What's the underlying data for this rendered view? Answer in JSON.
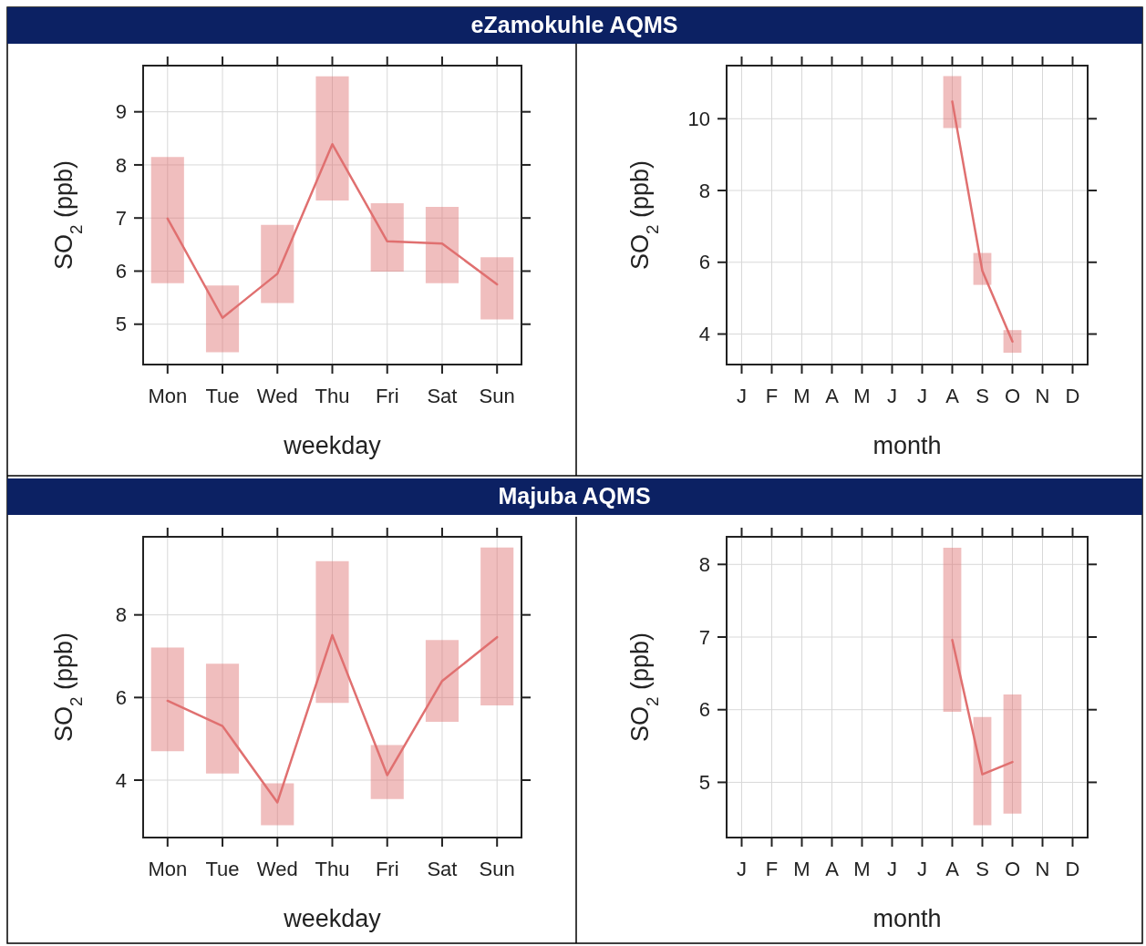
{
  "chart_data": [
    {
      "type": "line",
      "title": "eZamokuhle AQMS",
      "categories": [
        "Mon",
        "Tue",
        "Wed",
        "Thu",
        "Fri",
        "Sat",
        "Sun"
      ],
      "xlabel": "weekday",
      "ylabel": "SO$_{2}$ (ppb)",
      "ylim": [
        4.24,
        9.87
      ],
      "yticks": [
        5,
        6,
        7,
        8,
        9
      ],
      "grid": true,
      "series": [
        {
          "color": "#e07070",
          "values": [
            6.99,
            5.12,
            5.95,
            8.39,
            6.56,
            6.52,
            5.75
          ],
          "errors": [
            [
              5.77,
              8.15
            ],
            [
              4.47,
              5.73
            ],
            [
              5.4,
              6.87
            ],
            [
              7.33,
              9.67
            ],
            [
              5.99,
              7.28
            ],
            [
              5.77,
              7.21
            ],
            [
              5.09,
              6.26
            ]
          ]
        }
      ]
    },
    {
      "type": "line",
      "categories": [
        "J",
        "F",
        "M",
        "A",
        "M",
        "J",
        "J",
        "A",
        "S",
        "O",
        "N",
        "D"
      ],
      "xlabel": "month",
      "ylabel": "SO$_{2}$ (ppb)",
      "ylim": [
        3.15,
        11.48
      ],
      "yticks": [
        4,
        6,
        8,
        10
      ],
      "grid": true,
      "series": [
        {
          "color": "#e07070",
          "values": [
            null,
            null,
            null,
            null,
            null,
            null,
            null,
            10.48,
            5.76,
            3.79,
            null,
            null
          ],
          "errors": [
            null,
            null,
            null,
            null,
            null,
            null,
            null,
            [
              9.74,
              11.19
            ],
            [
              5.37,
              6.26
            ],
            [
              3.48,
              4.11
            ],
            null,
            null
          ]
        }
      ]
    },
    {
      "type": "line",
      "title": "Majuba AQMS",
      "categories": [
        "Mon",
        "Tue",
        "Wed",
        "Thu",
        "Fri",
        "Sat",
        "Sun"
      ],
      "xlabel": "weekday",
      "ylabel": "SO$_{2}$ (ppb)",
      "ylim": [
        2.61,
        9.89
      ],
      "yticks": [
        4,
        6,
        8
      ],
      "grid": true,
      "series": [
        {
          "color": "#e07070",
          "values": [
            5.92,
            5.31,
            3.46,
            7.51,
            4.12,
            6.4,
            7.46
          ],
          "errors": [
            [
              4.7,
              7.21
            ],
            [
              4.16,
              6.82
            ],
            [
              2.91,
              3.92
            ],
            [
              5.87,
              9.3
            ],
            [
              3.54,
              4.85
            ],
            [
              5.41,
              7.39
            ],
            [
              5.81,
              9.63
            ]
          ]
        }
      ]
    },
    {
      "type": "line",
      "categories": [
        "J",
        "F",
        "M",
        "A",
        "M",
        "J",
        "J",
        "A",
        "S",
        "O",
        "N",
        "D"
      ],
      "xlabel": "month",
      "ylabel": "SO$_{2}$ (ppb)",
      "ylim": [
        4.24,
        8.38
      ],
      "yticks": [
        5,
        6,
        7,
        8
      ],
      "grid": true,
      "series": [
        {
          "color": "#e07070",
          "values": [
            null,
            null,
            null,
            null,
            null,
            null,
            null,
            6.96,
            5.11,
            5.28,
            null,
            null
          ],
          "errors": [
            null,
            null,
            null,
            null,
            null,
            null,
            null,
            [
              5.97,
              8.23
            ],
            [
              4.41,
              5.9
            ],
            [
              4.57,
              6.21
            ],
            null,
            null
          ]
        }
      ]
    }
  ]
}
